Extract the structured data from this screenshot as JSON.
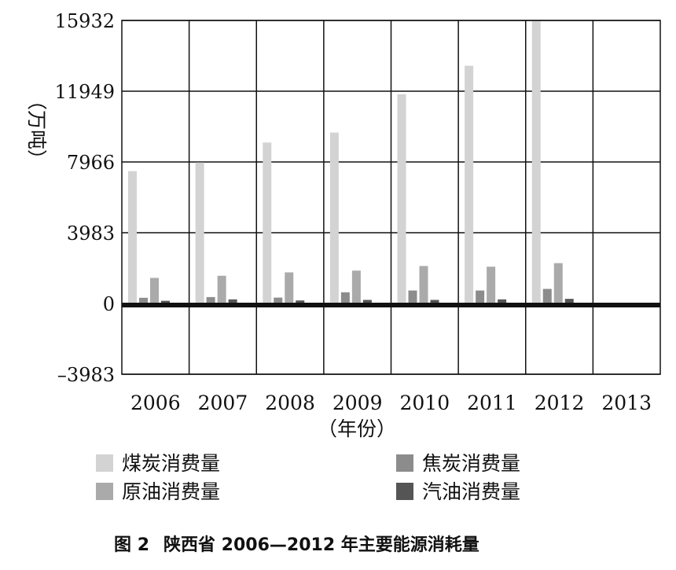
{
  "chart_data": {
    "type": "bar",
    "ylabel": "（万吨）",
    "xlabel": "（年份）",
    "categories": [
      "2006",
      "2007",
      "2008",
      "2009",
      "2010",
      "2011",
      "2012",
      "2013"
    ],
    "y_ticks": [
      "15932",
      "11949",
      "7966",
      "3983",
      "0",
      "–3983"
    ],
    "ylim": [
      -3983,
      15932
    ],
    "grid": true,
    "legend_position": "bottom",
    "series": [
      {
        "name": "煤炭消费量",
        "color": "#d3d3d3",
        "values": [
          7450,
          7940,
          9060,
          9620,
          11780,
          13380,
          15880,
          null
        ]
      },
      {
        "name": "焦炭消费量",
        "color": "#8c8c8c",
        "values": [
          320,
          360,
          330,
          630,
          730,
          730,
          820,
          null
        ]
      },
      {
        "name": "原油消费量",
        "color": "#aaaaaa",
        "values": [
          1440,
          1560,
          1750,
          1850,
          2110,
          2070,
          2270,
          null
        ]
      },
      {
        "name": "汽油消费量",
        "color": "#555555",
        "values": [
          150,
          230,
          170,
          200,
          200,
          230,
          260,
          null
        ]
      }
    ]
  },
  "caption": {
    "label": "图 2",
    "text": "陕西省 2006—2012 年主要能源消耗量"
  }
}
